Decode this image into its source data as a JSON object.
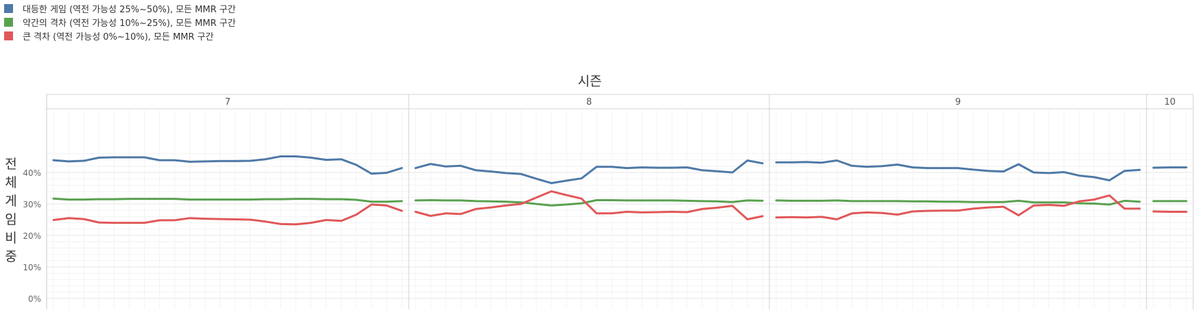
{
  "chart_data": {
    "type": "line",
    "xlabel": "시즌",
    "ylabel": "전체게임비중",
    "ylim": [
      0,
      0.5
    ],
    "yticks": [
      0,
      0.1,
      0.2,
      0.3,
      0.4
    ],
    "ytick_labels": [
      "0%",
      "10%",
      "20%",
      "30%",
      "40%"
    ],
    "grid": true,
    "legend_position": "top-left",
    "panels": [
      {
        "label": "7",
        "series": [
          {
            "name": "대등한 게임 (역전 가능성 25%~50%), 모든 MMR 구간",
            "color": "#4e79a7",
            "values": [
              0.439,
              0.435,
              0.437,
              0.447,
              0.448,
              0.448,
              0.448,
              0.439,
              0.439,
              0.434,
              0.435,
              0.436,
              0.436,
              0.437,
              0.442,
              0.451,
              0.451,
              0.447,
              0.44,
              0.442,
              0.424,
              0.396,
              0.399,
              0.414
            ]
          },
          {
            "name": "약간의 격차 (역전 가능성 10%~25%), 모든 MMR 구간",
            "color": "#59a14f",
            "values": [
              0.317,
              0.314,
              0.314,
              0.315,
              0.315,
              0.316,
              0.316,
              0.316,
              0.316,
              0.314,
              0.314,
              0.314,
              0.314,
              0.314,
              0.315,
              0.315,
              0.316,
              0.316,
              0.315,
              0.315,
              0.313,
              0.307,
              0.307,
              0.309
            ]
          },
          {
            "name": "큰 격차 (역전 가능성 0%~10%), 모든 MMR 구간",
            "color": "#e15759",
            "values": [
              0.249,
              0.255,
              0.252,
              0.241,
              0.24,
              0.24,
              0.24,
              0.248,
              0.248,
              0.255,
              0.253,
              0.252,
              0.251,
              0.25,
              0.244,
              0.236,
              0.235,
              0.24,
              0.249,
              0.246,
              0.266,
              0.298,
              0.295,
              0.278
            ]
          }
        ]
      },
      {
        "label": "8",
        "series": [
          {
            "name": "대등한 게임 (역전 가능성 25%~50%), 모든 MMR 구간",
            "color": "#4e79a7",
            "values": [
              0.414,
              0.427,
              0.419,
              0.421,
              0.407,
              0.403,
              0.398,
              0.395,
              0.38,
              0.366,
              0.374,
              0.381,
              0.418,
              0.418,
              0.414,
              0.416,
              0.415,
              0.415,
              0.416,
              0.407,
              0.404,
              0.4,
              0.438,
              0.429
            ]
          },
          {
            "name": "약간의 격차 (역전 가능성 10%~25%), 모든 MMR 구간",
            "color": "#59a14f",
            "values": [
              0.311,
              0.312,
              0.311,
              0.311,
              0.309,
              0.308,
              0.307,
              0.305,
              0.3,
              0.295,
              0.298,
              0.302,
              0.312,
              0.312,
              0.311,
              0.311,
              0.311,
              0.311,
              0.31,
              0.309,
              0.308,
              0.306,
              0.311,
              0.31
            ]
          },
          {
            "name": "큰 격차 (역전 가능성 0%~10%), 모든 MMR 구간",
            "color": "#e15759",
            "values": [
              0.275,
              0.262,
              0.27,
              0.268,
              0.284,
              0.289,
              0.295,
              0.3,
              0.32,
              0.34,
              0.328,
              0.317,
              0.27,
              0.27,
              0.275,
              0.273,
              0.274,
              0.275,
              0.274,
              0.284,
              0.288,
              0.294,
              0.251,
              0.261
            ]
          }
        ]
      },
      {
        "label": "9",
        "series": [
          {
            "name": "대등한 게임 (역전 가능성 25%~50%), 모든 MMR 구간",
            "color": "#4e79a7",
            "values": [
              0.432,
              0.432,
              0.433,
              0.431,
              0.438,
              0.421,
              0.418,
              0.42,
              0.425,
              0.416,
              0.414,
              0.414,
              0.414,
              0.409,
              0.405,
              0.403,
              0.426,
              0.4,
              0.398,
              0.401,
              0.39,
              0.385,
              0.375,
              0.405,
              0.408
            ]
          },
          {
            "name": "약간의 격차 (역전 가능성 10%~25%), 모든 MMR 구간",
            "color": "#59a14f",
            "values": [
              0.311,
              0.31,
              0.31,
              0.31,
              0.311,
              0.309,
              0.309,
              0.309,
              0.309,
              0.308,
              0.308,
              0.307,
              0.307,
              0.306,
              0.306,
              0.306,
              0.31,
              0.305,
              0.305,
              0.305,
              0.302,
              0.301,
              0.298,
              0.31,
              0.307
            ]
          },
          {
            "name": "큰 격차 (역전 가능성 0%~10%), 모든 MMR 구간",
            "color": "#e15759",
            "values": [
              0.257,
              0.258,
              0.257,
              0.259,
              0.251,
              0.27,
              0.273,
              0.271,
              0.266,
              0.276,
              0.278,
              0.279,
              0.279,
              0.285,
              0.289,
              0.291,
              0.264,
              0.295,
              0.297,
              0.294,
              0.308,
              0.314,
              0.327,
              0.285,
              0.285
            ]
          }
        ]
      },
      {
        "label": "10",
        "series": [
          {
            "name": "대등한 게임 (역전 가능성 25%~50%), 모든 MMR 구간",
            "color": "#4e79a7",
            "values": [
              0.415,
              0.416,
              0.416
            ]
          },
          {
            "name": "약간의 격차 (역전 가능성 10%~25%), 모든 MMR 구간",
            "color": "#59a14f",
            "values": [
              0.309,
              0.309,
              0.309
            ]
          },
          {
            "name": "큰 격차 (역전 가능성 0%~10%), 모든 MMR 구간",
            "color": "#e15759",
            "values": [
              0.276,
              0.275,
              0.275
            ]
          }
        ]
      }
    ]
  }
}
